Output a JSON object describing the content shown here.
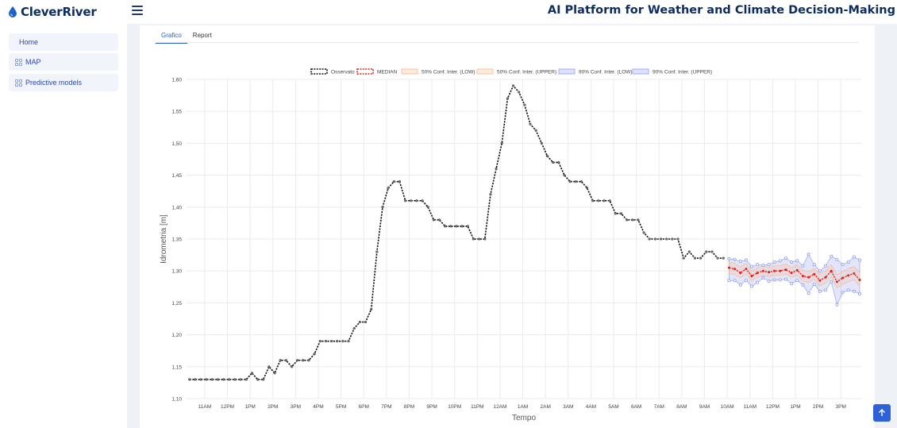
{
  "header": {
    "brand": "CleverRiver",
    "title": "AI Platform for Weather and Climate Decision-Making"
  },
  "sidebar": {
    "items": [
      {
        "label": "Home"
      },
      {
        "label": "MAP"
      },
      {
        "label": "Predictive models"
      }
    ]
  },
  "tabs": [
    {
      "label": "Grafico",
      "active": true
    },
    {
      "label": "Report",
      "active": false
    }
  ],
  "colors": {
    "observed": "#111111",
    "median": "#e0201b",
    "conf50": "#f6b98f",
    "conf90": "#8f9df0",
    "accent": "#2f62d9"
  },
  "chart_data": {
    "type": "line",
    "xlabel": "Tempo",
    "ylabel": "Idrometria [m]",
    "ylim": [
      1.1,
      1.6
    ],
    "yticks": [
      "1,10",
      "1,15",
      "1,20",
      "1,25",
      "1,30",
      "1,35",
      "1,40",
      "1,45",
      "1,50",
      "1,55",
      "1,60"
    ],
    "xticks": [
      "11AM",
      "12PM",
      "1PM",
      "2PM",
      "3PM",
      "4PM",
      "5PM",
      "6PM",
      "7PM",
      "8PM",
      "9PM",
      "10PM",
      "11PM",
      "12AM",
      "1AM",
      "2AM",
      "3AM",
      "4AM",
      "5AM",
      "6AM",
      "7AM",
      "8AM",
      "9AM",
      "10AM",
      "11AM",
      "12PM",
      "1PM",
      "2PM",
      "3PM"
    ],
    "xtick_hours": [
      11,
      12,
      13,
      14,
      15,
      16,
      17,
      18,
      19,
      20,
      21,
      22,
      23,
      24,
      25,
      26,
      27,
      28,
      29,
      30,
      31,
      32,
      33,
      34,
      35,
      36,
      37,
      38,
      39
    ],
    "xrange_hours": [
      10.2,
      39.9
    ],
    "legend": {
      "placement": "top",
      "entries": [
        "Osservato",
        "MEDIAN",
        "50% Conf. Inter. (LOW)",
        "50% Conf. Inter. (UPPER)",
        "90% Conf. Inter. (LOW)",
        "90% Conf. Inter. (UPPER)"
      ]
    },
    "observed": {
      "name": "Osservato",
      "x": [
        10.33,
        10.58,
        10.83,
        11.08,
        11.33,
        11.58,
        11.83,
        12.08,
        12.33,
        12.58,
        12.83,
        13.08,
        13.33,
        13.58,
        13.83,
        14.08,
        14.33,
        14.58,
        14.83,
        15.08,
        15.33,
        15.58,
        15.83,
        16.08,
        16.33,
        16.58,
        16.83,
        17.08,
        17.33,
        17.58,
        17.83,
        18.08,
        18.33,
        18.58,
        18.83,
        19.08,
        19.33,
        19.58,
        19.83,
        20.08,
        20.33,
        20.58,
        20.83,
        21.08,
        21.33,
        21.58,
        21.83,
        22.08,
        22.33,
        22.58,
        22.83,
        23.08,
        23.33,
        23.58,
        23.83,
        24.08,
        24.33,
        24.58,
        24.83,
        25.08,
        25.33,
        25.58,
        25.83,
        26.08,
        26.33,
        26.58,
        26.83,
        27.08,
        27.33,
        27.58,
        27.83,
        28.08,
        28.33,
        28.58,
        28.83,
        29.08,
        29.33,
        29.58,
        29.83,
        30.08,
        30.33,
        30.58,
        30.83,
        31.08,
        31.33,
        31.58,
        31.83,
        32.08,
        32.33,
        32.58,
        32.83,
        33.08,
        33.33,
        33.58,
        33.83
      ],
      "y": [
        1.13,
        1.13,
        1.13,
        1.13,
        1.13,
        1.13,
        1.13,
        1.13,
        1.13,
        1.13,
        1.13,
        1.14,
        1.13,
        1.13,
        1.15,
        1.14,
        1.16,
        1.16,
        1.15,
        1.16,
        1.16,
        1.16,
        1.17,
        1.19,
        1.19,
        1.19,
        1.19,
        1.19,
        1.19,
        1.21,
        1.22,
        1.22,
        1.24,
        1.33,
        1.4,
        1.43,
        1.44,
        1.44,
        1.41,
        1.41,
        1.41,
        1.41,
        1.4,
        1.38,
        1.38,
        1.37,
        1.37,
        1.37,
        1.37,
        1.37,
        1.35,
        1.35,
        1.35,
        1.42,
        1.46,
        1.5,
        1.57,
        1.59,
        1.58,
        1.56,
        1.53,
        1.52,
        1.5,
        1.48,
        1.47,
        1.47,
        1.45,
        1.44,
        1.44,
        1.44,
        1.43,
        1.41,
        1.41,
        1.41,
        1.41,
        1.39,
        1.39,
        1.38,
        1.38,
        1.38,
        1.36,
        1.35,
        1.35,
        1.35,
        1.35,
        1.35,
        1.35,
        1.32,
        1.33,
        1.32,
        1.32,
        1.33,
        1.33,
        1.32,
        1.32
      ]
    },
    "forecast_x": [
      34.08,
      34.33,
      34.58,
      34.83,
      35.08,
      35.33,
      35.58,
      35.83,
      36.08,
      36.33,
      36.58,
      36.83,
      37.08,
      37.33,
      37.58,
      37.83,
      38.08,
      38.33,
      38.58,
      38.83,
      39.08,
      39.33,
      39.58,
      39.83
    ],
    "median": [
      1.305,
      1.303,
      1.297,
      1.303,
      1.292,
      1.297,
      1.3,
      1.298,
      1.3,
      1.3,
      1.302,
      1.297,
      1.301,
      1.292,
      1.29,
      1.295,
      1.285,
      1.29,
      1.3,
      1.283,
      1.289,
      1.293,
      1.296,
      1.286
    ],
    "conf50_low": [
      1.296,
      1.294,
      1.289,
      1.295,
      1.285,
      1.29,
      1.293,
      1.291,
      1.293,
      1.293,
      1.295,
      1.29,
      1.293,
      1.284,
      1.282,
      1.287,
      1.276,
      1.281,
      1.291,
      1.273,
      1.279,
      1.283,
      1.286,
      1.276
    ],
    "conf50_upper": [
      1.314,
      1.312,
      1.306,
      1.312,
      1.3,
      1.305,
      1.308,
      1.306,
      1.308,
      1.308,
      1.311,
      1.305,
      1.31,
      1.301,
      1.299,
      1.304,
      1.295,
      1.3,
      1.31,
      1.294,
      1.299,
      1.304,
      1.307,
      1.297
    ],
    "conf90_low": [
      1.285,
      1.285,
      1.278,
      1.285,
      1.276,
      1.282,
      1.289,
      1.284,
      1.286,
      1.286,
      1.287,
      1.28,
      1.285,
      1.278,
      1.265,
      1.279,
      1.268,
      1.27,
      1.283,
      1.247,
      1.266,
      1.27,
      1.268,
      1.264
    ],
    "conf90_upper": [
      1.319,
      1.318,
      1.315,
      1.317,
      1.307,
      1.31,
      1.309,
      1.31,
      1.314,
      1.316,
      1.32,
      1.314,
      1.316,
      1.308,
      1.326,
      1.31,
      1.3,
      1.308,
      1.323,
      1.318,
      1.31,
      1.314,
      1.322,
      1.317
    ]
  }
}
